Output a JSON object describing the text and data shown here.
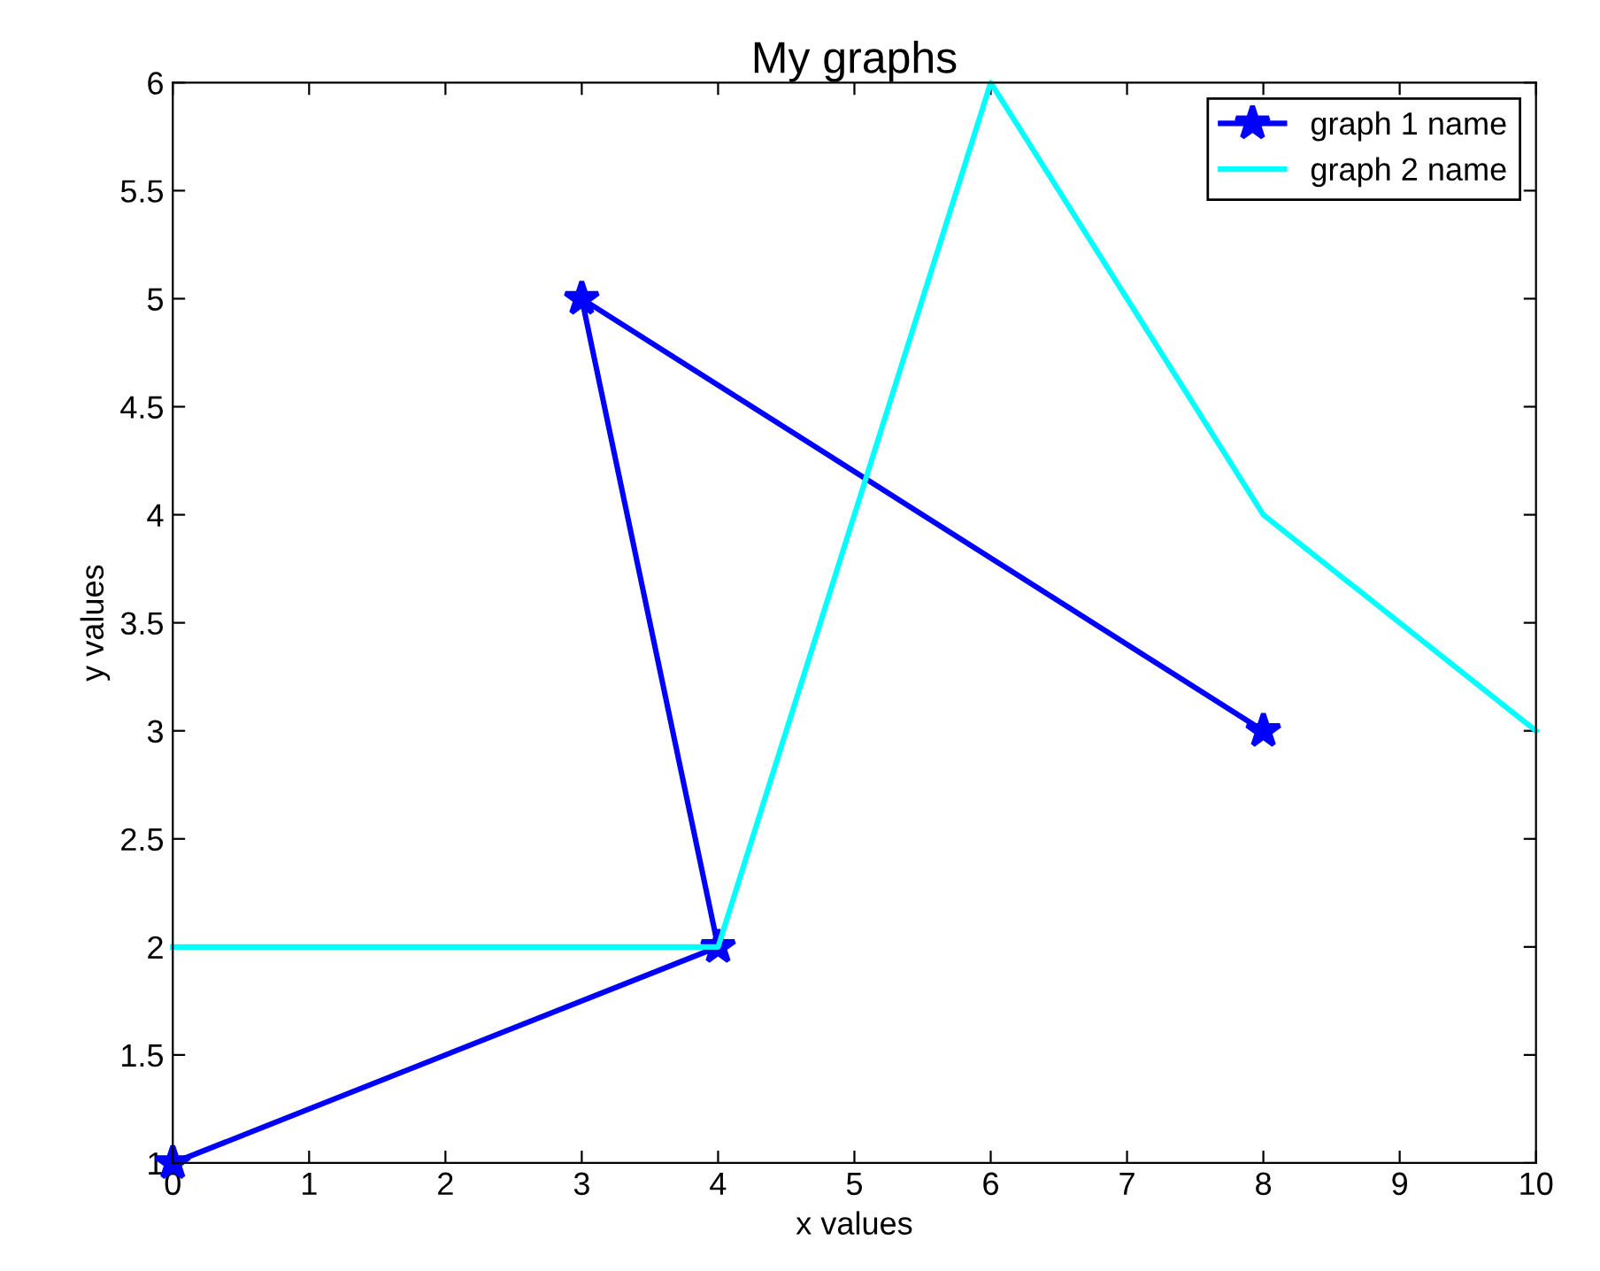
{
  "chart_data": {
    "type": "line",
    "title": "My graphs",
    "xlabel": "x values",
    "ylabel": "y values",
    "series": [
      {
        "name": "graph 1 name",
        "color": "#0000ff",
        "x": [
          0,
          4,
          3,
          8
        ],
        "values": [
          1,
          2,
          5,
          3
        ],
        "marker": "star"
      },
      {
        "name": "graph 2 name",
        "color": "#00ffff",
        "x": [
          0,
          4,
          6,
          8,
          10
        ],
        "values": [
          2,
          2,
          6,
          4,
          3
        ],
        "marker": "none"
      }
    ],
    "xlim": [
      0,
      10
    ],
    "ylim": [
      1,
      6
    ],
    "xticks": [
      0,
      1,
      2,
      3,
      4,
      5,
      6,
      7,
      8,
      9,
      10
    ],
    "yticks": [
      1,
      1.5,
      2,
      2.5,
      3,
      3.5,
      4,
      4.5,
      5,
      5.5,
      6
    ],
    "grid": false,
    "legend": "top right",
    "line_style": "solid"
  }
}
